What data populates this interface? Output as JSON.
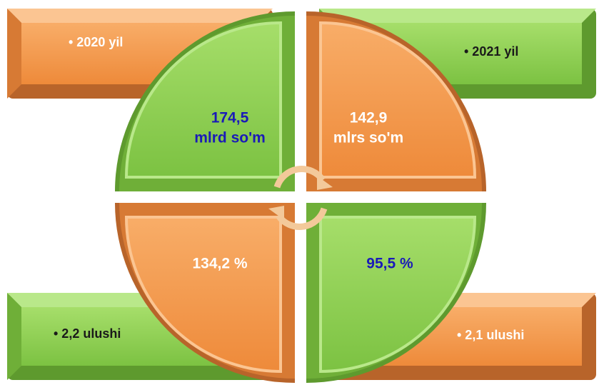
{
  "corners": [
    {
      "label": "• 2020 yil"
    },
    {
      "label": "• 2021 yil"
    },
    {
      "label": "• 2,2 ulushi"
    },
    {
      "label": "• 2,1 ulushi"
    }
  ],
  "quadrants": [
    {
      "lines": [
        "174,5",
        "mlrd so'm"
      ]
    },
    {
      "lines": [
        "142,9",
        "mlrs so'm"
      ]
    },
    {
      "lines": [
        "134,2 %"
      ]
    },
    {
      "lines": [
        "95,5 %"
      ]
    }
  ]
}
